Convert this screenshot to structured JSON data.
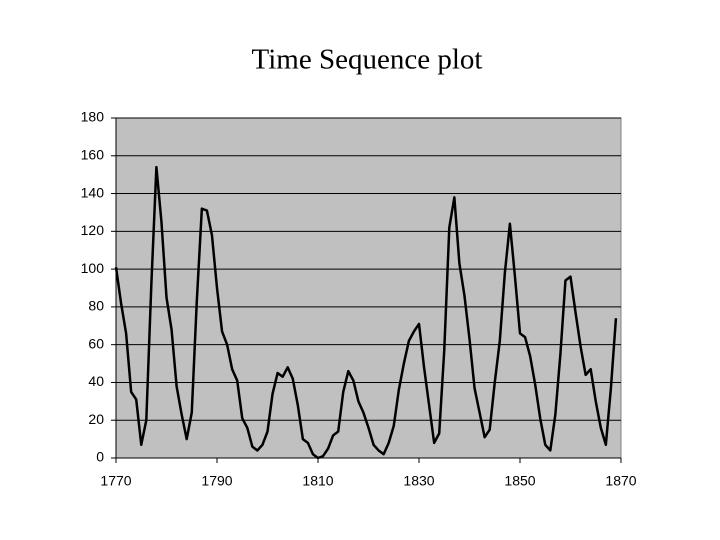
{
  "chart_data": {
    "type": "line",
    "title": "Time Sequence plot",
    "x": [
      1770,
      1771,
      1772,
      1773,
      1774,
      1775,
      1776,
      1777,
      1778,
      1779,
      1780,
      1781,
      1782,
      1783,
      1784,
      1785,
      1786,
      1787,
      1788,
      1789,
      1790,
      1791,
      1792,
      1793,
      1794,
      1795,
      1796,
      1797,
      1798,
      1799,
      1800,
      1801,
      1802,
      1803,
      1804,
      1805,
      1806,
      1807,
      1808,
      1809,
      1810,
      1811,
      1812,
      1813,
      1814,
      1815,
      1816,
      1817,
      1818,
      1819,
      1820,
      1821,
      1822,
      1823,
      1824,
      1825,
      1826,
      1827,
      1828,
      1829,
      1830,
      1831,
      1832,
      1833,
      1834,
      1835,
      1836,
      1837,
      1838,
      1839,
      1840,
      1841,
      1842,
      1843,
      1844,
      1845,
      1846,
      1847,
      1848,
      1849,
      1850,
      1851,
      1852,
      1853,
      1854,
      1855,
      1856,
      1857,
      1858,
      1859,
      1860,
      1861,
      1862,
      1863,
      1864,
      1865,
      1866,
      1867,
      1868,
      1869
    ],
    "series": [
      {
        "color": "#000000",
        "values": [
          101,
          82,
          66,
          35,
          31,
          7,
          20,
          92,
          154,
          125,
          85,
          68,
          38,
          23,
          10,
          24,
          83,
          132,
          131,
          118,
          90,
          67,
          60,
          47,
          41,
          21,
          16,
          6,
          4,
          7,
          14,
          34,
          45,
          43,
          48,
          42,
          28,
          10,
          8,
          2,
          0,
          1,
          5,
          12,
          14,
          35,
          46,
          41,
          30,
          24,
          16,
          7,
          4,
          2,
          8,
          17,
          36,
          50,
          62,
          67,
          71,
          48,
          28,
          8,
          13,
          57,
          122,
          138,
          103,
          86,
          63,
          37,
          24,
          11,
          15,
          40,
          62,
          98,
          124,
          96,
          66,
          64,
          54,
          39,
          21,
          7,
          4,
          23,
          55,
          94,
          96,
          77,
          59,
          44,
          47,
          30,
          16,
          7,
          37,
          74
        ]
      }
    ],
    "xlim": [
      1770,
      1870
    ],
    "xticks": [
      1770,
      1790,
      1810,
      1830,
      1850,
      1870
    ],
    "ylim": [
      0,
      180
    ],
    "yticks": [
      0,
      20,
      40,
      60,
      80,
      100,
      120,
      140,
      160,
      180
    ],
    "grid": true
  }
}
